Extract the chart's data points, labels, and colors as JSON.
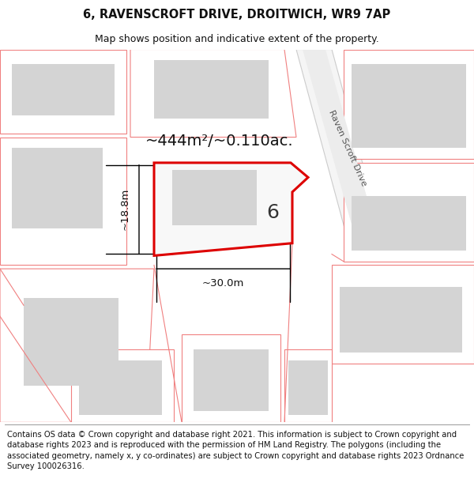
{
  "title": "6, RAVENSCROFT DRIVE, DROITWICH, WR9 7AP",
  "subtitle": "Map shows position and indicative extent of the property.",
  "footer_lines": [
    "Contains OS data © Crown copyright and database right 2021. This information is subject to Crown copyright and database rights 2023 and is reproduced with the permission of",
    "HM Land Registry. The polygons (including the associated geometry, namely x, y co-ordinates) are subject to Crown copyright and database rights 2023 Ordnance Survey",
    "100026316."
  ],
  "area_label": "~444m²/~0.110ac.",
  "width_label": "~30.0m",
  "height_label": "~18.8m",
  "plot_number": "6",
  "bg_color": "#ffffff",
  "map_bg": "#ffffff",
  "road_fill": "#f0efef",
  "building_fill": "#d4d4d4",
  "plot_fill": "#ffffff",
  "plot_edge_color": "#dd0000",
  "neighbor_edge_color": "#f08080",
  "neighbor_plot_fill": "#ffffff",
  "road_label": "Raven Scroft Drive",
  "title_fontsize": 10.5,
  "subtitle_fontsize": 9,
  "footer_fontsize": 7.2,
  "area_fontsize": 14,
  "dim_fontsize": 9.5,
  "plot_num_fontsize": 18
}
